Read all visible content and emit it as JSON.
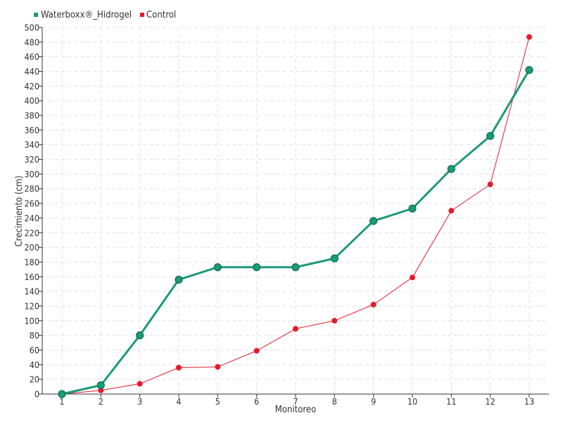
{
  "chart_data": {
    "type": "line",
    "xlabel": "Monitoreo",
    "ylabel": "Crecimiento (cm)",
    "ylim": [
      0,
      500
    ],
    "ytick_step": 20,
    "grid": true,
    "legend_position": "top-left",
    "categories": [
      "1",
      "2",
      "3",
      "4",
      "5",
      "6",
      "7",
      "8",
      "9",
      "10",
      "11",
      "12",
      "13"
    ],
    "series": [
      {
        "name": "Waterboxx®_Hidrogel",
        "color": "#1b9a78",
        "values": [
          0,
          12,
          80,
          156,
          173,
          173,
          173,
          185,
          236,
          253,
          307,
          352,
          442
        ]
      },
      {
        "name": "Control",
        "color": "#e31a2a",
        "values": [
          0,
          5,
          14,
          36,
          37,
          59,
          89,
          100,
          122,
          159,
          250,
          286,
          487
        ]
      }
    ]
  }
}
